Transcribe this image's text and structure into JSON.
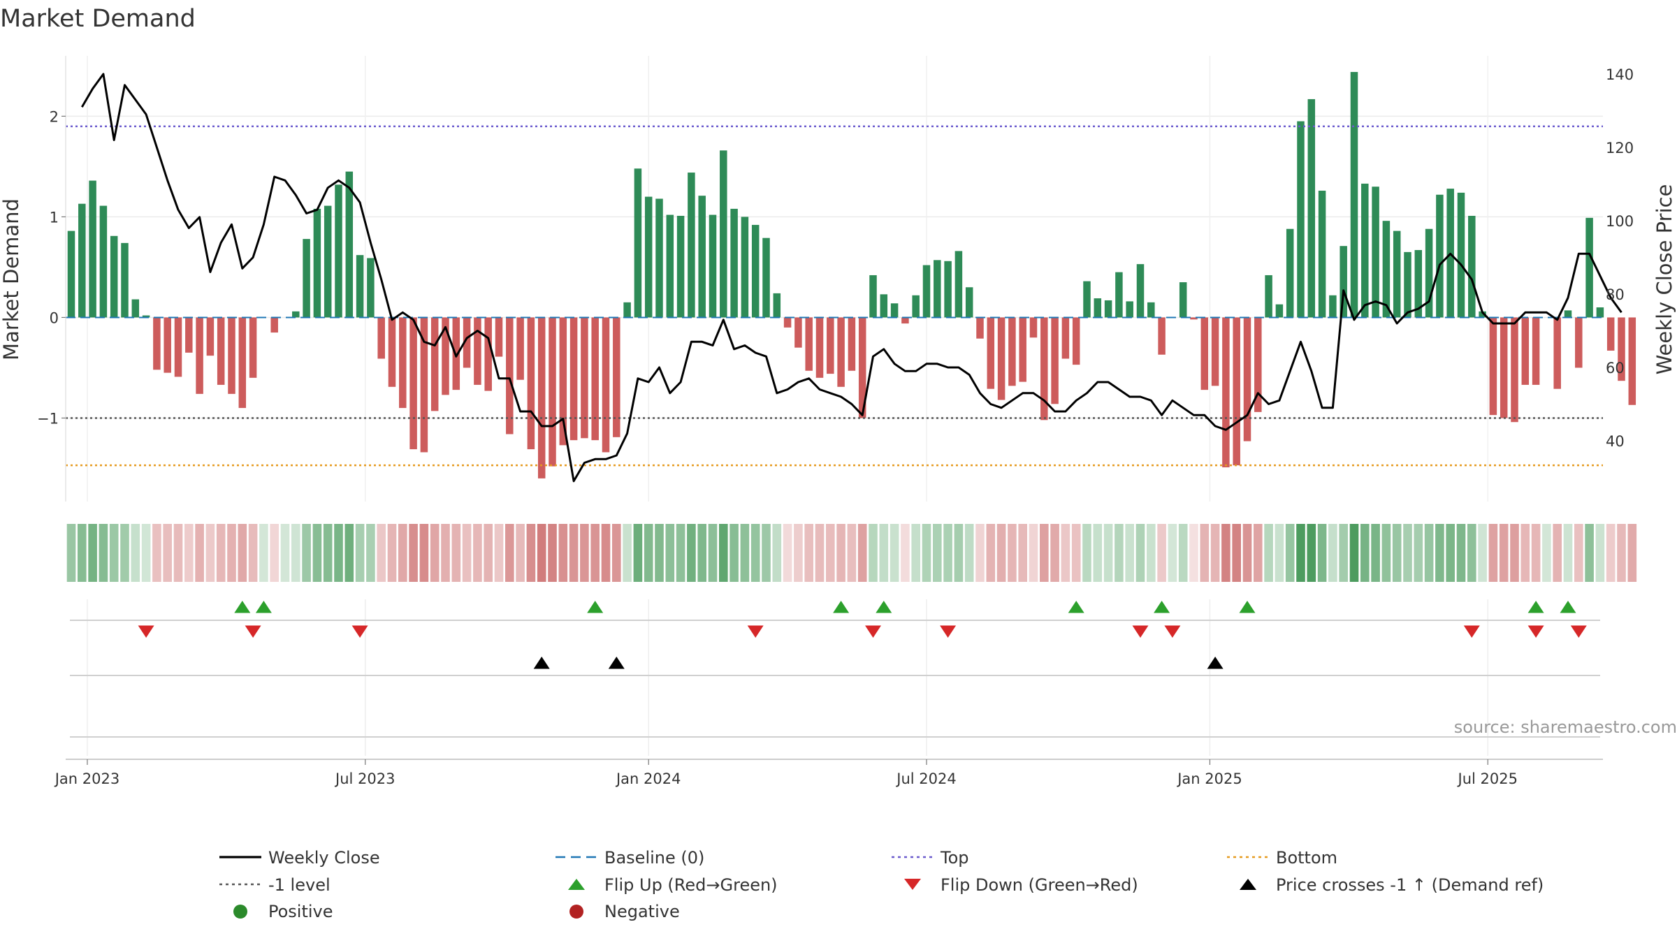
{
  "chart_data": {
    "type": "bar",
    "title": "Market Demand",
    "ylabel": "Market Demand",
    "y2label": "Weekly Close Price",
    "ylim": [
      -1.83,
      2.6
    ],
    "y2lim": [
      22,
      147
    ],
    "yticks": [
      -1,
      0,
      1,
      2
    ],
    "yticklabels": [
      "−1",
      "0",
      "1",
      "2"
    ],
    "y2ticks": [
      40,
      60,
      80,
      100,
      120,
      140
    ],
    "xticks": [
      {
        "label": "Jan 2023",
        "week": 1.5
      },
      {
        "label": "Jul 2023",
        "week": 27.5
      },
      {
        "label": "Jan 2024",
        "week": 54
      },
      {
        "label": "Jul 2024",
        "week": 80
      },
      {
        "label": "Jan 2025",
        "week": 106.5
      },
      {
        "label": "Jul 2025",
        "week": 132.5
      }
    ],
    "reference_lines": {
      "top": 1.9,
      "bottom": -1.47,
      "minus_one": -1,
      "baseline": 0
    },
    "demand": [
      0.86,
      1.13,
      1.36,
      1.11,
      0.81,
      0.74,
      0.18,
      0.02,
      -0.52,
      -0.55,
      -0.59,
      -0.35,
      -0.76,
      -0.38,
      -0.67,
      -0.76,
      -0.9,
      -0.6,
      0.0,
      -0.15,
      0.0,
      0.06,
      0.78,
      1.08,
      1.11,
      1.32,
      1.45,
      0.62,
      0.59,
      -0.41,
      -0.69,
      -0.9,
      -1.31,
      -1.34,
      -0.93,
      -0.77,
      -0.72,
      -0.5,
      -0.67,
      -0.73,
      -0.39,
      -1.16,
      -0.62,
      -1.31,
      -1.6,
      -1.48,
      -1.27,
      -1.22,
      -1.2,
      -1.22,
      -1.34,
      -1.19,
      0.15,
      1.48,
      1.2,
      1.18,
      1.02,
      1.01,
      1.44,
      1.21,
      1.02,
      1.66,
      1.08,
      1.0,
      0.92,
      0.79,
      0.24,
      -0.1,
      -0.3,
      -0.53,
      -0.6,
      -0.56,
      -0.69,
      -0.53,
      -1.0,
      0.42,
      0.23,
      0.14,
      -0.06,
      0.22,
      0.52,
      0.57,
      0.56,
      0.66,
      0.3,
      -0.21,
      -0.71,
      -0.82,
      -0.68,
      -0.64,
      -0.2,
      -1.02,
      -0.86,
      -0.41,
      -0.47,
      0.36,
      0.19,
      0.17,
      0.45,
      0.16,
      0.53,
      0.15,
      -0.37,
      0.0,
      0.35,
      -0.02,
      -0.72,
      -0.68,
      -1.49,
      -1.47,
      -1.23,
      -0.94,
      0.42,
      0.13,
      0.88,
      1.95,
      2.17,
      1.26,
      0.22,
      0.71,
      2.44,
      1.33,
      1.3,
      0.96,
      0.86,
      0.65,
      0.67,
      0.88,
      1.22,
      1.28,
      1.24,
      1.01,
      0.06,
      -0.97,
      -1.0,
      -1.04,
      -0.67,
      -0.67,
      0.0,
      -0.71,
      0.07,
      -0.5,
      0.99,
      0.1,
      -0.33,
      -0.63,
      -0.87
    ],
    "price": [
      null,
      131,
      136,
      140,
      122,
      137,
      133,
      129,
      120,
      111,
      103,
      98,
      101,
      86,
      94,
      99,
      87,
      90,
      99,
      112,
      111,
      107,
      102,
      103,
      109,
      111,
      109,
      105,
      94,
      84,
      73,
      75,
      73,
      67,
      66,
      71,
      63,
      68,
      70,
      68,
      57,
      57,
      48,
      48,
      44,
      44,
      46,
      29,
      34,
      35,
      35,
      36,
      42,
      57,
      56,
      60,
      53,
      56,
      67,
      67,
      66,
      73,
      65,
      66,
      64,
      63,
      53,
      54,
      56,
      57,
      54,
      53,
      52,
      50,
      47,
      63,
      65,
      61,
      59,
      59,
      61,
      61,
      60,
      60,
      58,
      53,
      50,
      49,
      51,
      53,
      53,
      51,
      48,
      48,
      51,
      53,
      56,
      56,
      54,
      52,
      52,
      51,
      47,
      51,
      49,
      47,
      47,
      44,
      43,
      45,
      47,
      53,
      50,
      51,
      59,
      67,
      59,
      49,
      49,
      81,
      73,
      77,
      78,
      77,
      72,
      75,
      76,
      78,
      88,
      91,
      88,
      84,
      75,
      72,
      72,
      72,
      75,
      75,
      75,
      73,
      79,
      91,
      91,
      85,
      79,
      75
    ],
    "flip_up": [
      16,
      18,
      49,
      72,
      76,
      94,
      102,
      110,
      137,
      140
    ],
    "flip_down": [
      7,
      17,
      27,
      64,
      75,
      82,
      100,
      103,
      131,
      137,
      141
    ],
    "price_crosses_minus1": [
      44,
      51,
      107
    ],
    "series": [
      {
        "name": "Weekly Close",
        "color": "#000000",
        "style": "solid"
      },
      {
        "name": "Baseline (0)",
        "color": "#1f77b4",
        "style": "dashed"
      },
      {
        "name": "Top",
        "color": "#6a5acd",
        "style": "dotted"
      },
      {
        "name": "Bottom",
        "color": "#e69a1e",
        "style": "dotted"
      },
      {
        "name": "-1 level",
        "color": "#555555",
        "style": "dotted"
      },
      {
        "name": "Flip Up (Red→Green)",
        "color": "#2ca02c",
        "marker": "triangle-up"
      },
      {
        "name": "Flip Down (Green→Red)",
        "color": "#d62728",
        "marker": "triangle-down"
      },
      {
        "name": "Price crosses -1 ↑ (Demand ref)",
        "color": "#000000",
        "marker": "triangle-up"
      },
      {
        "name": "Positive",
        "color": "#2b8a2b",
        "marker": "circle"
      },
      {
        "name": "Negative",
        "color": "#b22222",
        "marker": "circle"
      }
    ],
    "source": "source: sharemaestro.com"
  }
}
